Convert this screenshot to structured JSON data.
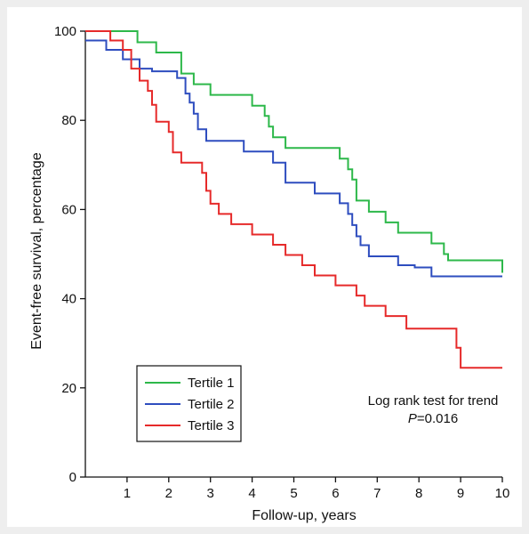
{
  "chart_data": {
    "type": "line",
    "xlabel": "Follow-up, years",
    "ylabel": "Event-free survival, percentage",
    "xlim": [
      0,
      10
    ],
    "ylim": [
      0,
      100
    ],
    "x_ticks": [
      "1",
      "2",
      "3",
      "4",
      "5",
      "6",
      "7",
      "8",
      "9",
      "10"
    ],
    "y_ticks": [
      "0",
      "20",
      "40",
      "60",
      "80",
      "100"
    ],
    "grid": false,
    "legend_position": "bottom-left",
    "series": [
      {
        "name": "Tertile 1",
        "color": "#2db84a",
        "x": [
          0,
          1.25,
          1.7,
          2.3,
          2.6,
          3.0,
          3.5,
          4.0,
          4.3,
          4.4,
          4.5,
          4.6,
          4.8,
          5.8,
          6.1,
          6.3,
          6.4,
          6.5,
          6.7,
          6.8,
          7.2,
          7.5,
          8.3,
          8.6,
          8.7,
          10
        ],
        "y": [
          100,
          97.5,
          95.2,
          90.5,
          88.1,
          85.7,
          85.7,
          83.3,
          81.0,
          78.6,
          76.2,
          76.2,
          73.8,
          73.8,
          71.4,
          69.0,
          66.7,
          62.0,
          62.0,
          59.5,
          57.1,
          54.8,
          52.4,
          50.0,
          48.6,
          45.8
        ]
      },
      {
        "name": "Tertile 2",
        "color": "#2e4dbf",
        "x": [
          0,
          0.5,
          0.9,
          1.3,
          1.6,
          2.2,
          2.4,
          2.5,
          2.6,
          2.7,
          2.9,
          3.8,
          4.5,
          4.8,
          5.5,
          6.1,
          6.3,
          6.4,
          6.5,
          6.6,
          6.8,
          7.5,
          7.9,
          8.3,
          10
        ],
        "y": [
          97.9,
          95.8,
          93.7,
          91.6,
          91.0,
          89.5,
          86.0,
          84.0,
          81.5,
          78.0,
          75.4,
          73.0,
          70.5,
          66.0,
          63.6,
          61.4,
          59.0,
          56.5,
          54.0,
          52.0,
          49.5,
          47.5,
          47.0,
          45.0,
          45.0
        ]
      },
      {
        "name": "Tertile 3",
        "color": "#e62a2a",
        "x": [
          0,
          0.6,
          0.9,
          1.1,
          1.3,
          1.5,
          1.6,
          1.7,
          2.0,
          2.1,
          2.3,
          2.8,
          2.9,
          3.0,
          3.2,
          3.5,
          4.0,
          4.5,
          4.8,
          5.2,
          5.5,
          6.0,
          6.5,
          6.7,
          7.2,
          7.7,
          8.9,
          9.0,
          10
        ],
        "y": [
          100,
          97.9,
          95.8,
          91.6,
          88.9,
          86.6,
          83.5,
          79.7,
          77.4,
          72.8,
          70.5,
          68.2,
          64.2,
          61.3,
          59.0,
          56.7,
          54.4,
          52.1,
          49.8,
          47.5,
          45.2,
          43.0,
          40.7,
          38.4,
          36.1,
          33.3,
          29.0,
          24.5,
          24.5
        ]
      }
    ],
    "annotation": {
      "line1": "Log rank test for trend",
      "p_prefix": "P",
      "p_value": "=0.016"
    }
  }
}
